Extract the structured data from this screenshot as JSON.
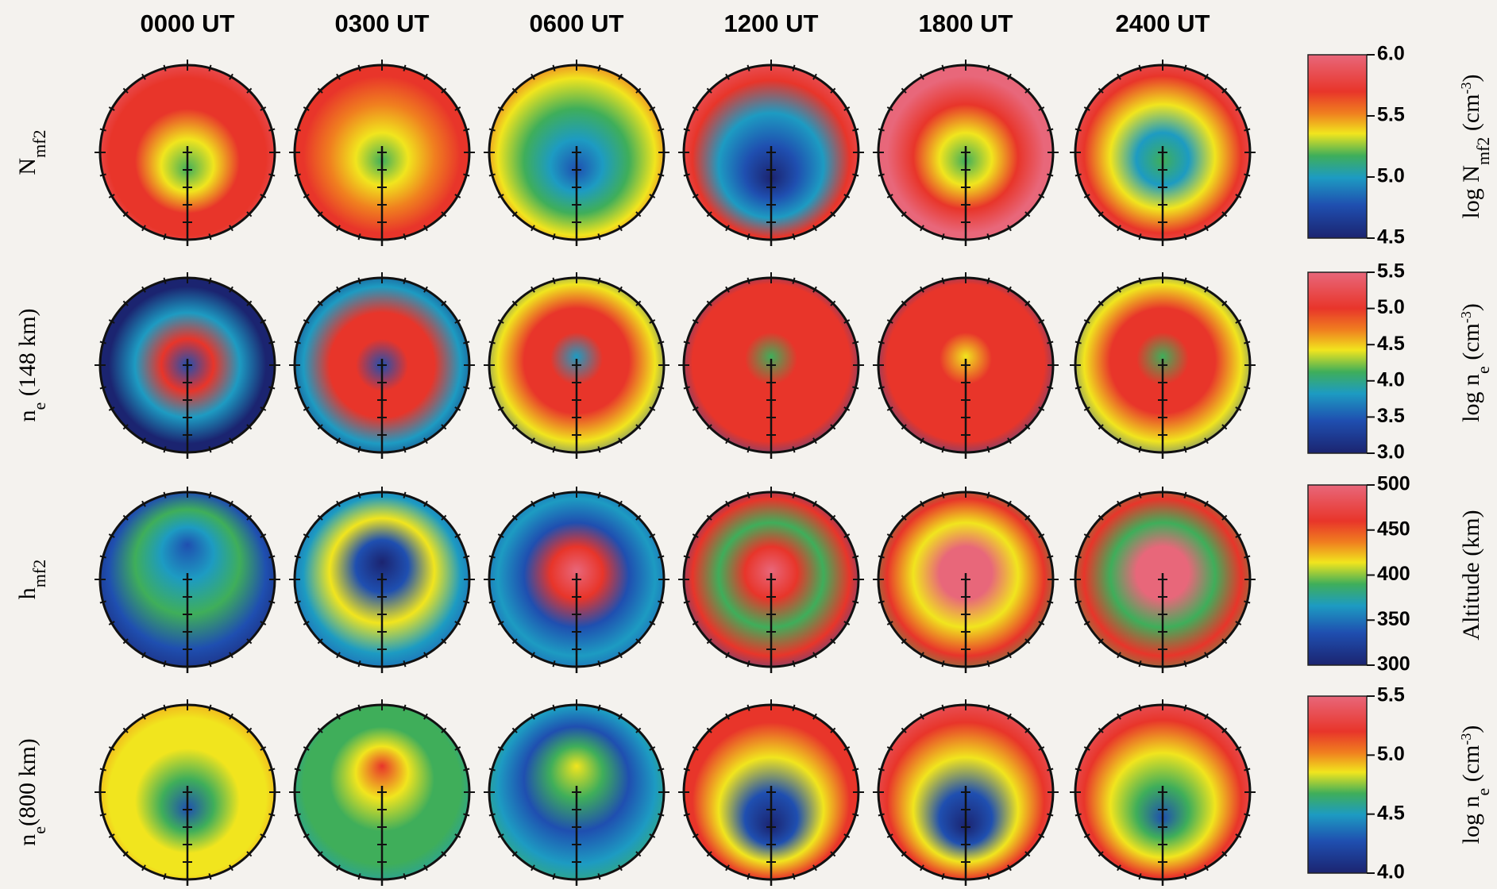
{
  "columns": [
    "0000 UT",
    "0300 UT",
    "0600 UT",
    "1200 UT",
    "1800 UT",
    "2400 UT"
  ],
  "rows": [
    {
      "label": [
        {
          "text": "N"
        },
        {
          "text": "mf2",
          "sub": true
        }
      ],
      "colorbar": {
        "label": [
          {
            "text": "log N"
          },
          {
            "text": "mf2",
            "sub": true
          },
          {
            "text": " (cm"
          },
          {
            "text": "-3",
            "sup": true
          },
          {
            "text": ")"
          }
        ],
        "lim": [
          4.5,
          6.0
        ],
        "ticks": [
          {
            "value": 4.5,
            "label": "4.5"
          },
          {
            "value": 5,
            "label": "5.0"
          },
          {
            "value": 5.5,
            "label": "5.5"
          },
          {
            "value": 6,
            "label": "6.0"
          }
        ]
      }
    },
    {
      "label": [
        {
          "text": "n"
        },
        {
          "text": "e",
          "sub": true
        },
        {
          "text": " (148 km)"
        }
      ],
      "colorbar": {
        "label": [
          {
            "text": "log n"
          },
          {
            "text": "e",
            "sub": true
          },
          {
            "text": " (cm"
          },
          {
            "text": "-3",
            "sup": true
          },
          {
            "text": ")"
          }
        ],
        "lim": [
          3.0,
          5.5
        ],
        "ticks": [
          {
            "value": 3,
            "label": "3.0"
          },
          3.5,
          {
            "value": 4,
            "label": "4.0"
          },
          4.5,
          {
            "value": 5,
            "label": "5.0"
          },
          5.5
        ]
      }
    },
    {
      "label": [
        {
          "text": "h"
        },
        {
          "text": "mf2",
          "sub": true
        }
      ],
      "colorbar": {
        "label": [
          {
            "text": "Altitude (km)"
          }
        ],
        "lim": [
          300,
          500
        ],
        "ticks": [
          300,
          350,
          400,
          450,
          500
        ]
      }
    },
    {
      "label": [
        {
          "text": "n"
        },
        {
          "text": "e",
          "sub": true
        },
        {
          "text": "(800 km)"
        }
      ],
      "colorbar": {
        "label": [
          {
            "text": "log n"
          },
          {
            "text": "e",
            "sub": true
          },
          {
            "text": " (cm"
          },
          {
            "text": "-3",
            "sup": true
          },
          {
            "text": ")"
          }
        ],
        "lim": [
          4.0,
          5.5
        ],
        "ticks": [
          {
            "value": 4,
            "label": "4.0"
          },
          4.5,
          {
            "value": 5,
            "label": "5.0"
          },
          5.5
        ]
      }
    }
  ]
}
